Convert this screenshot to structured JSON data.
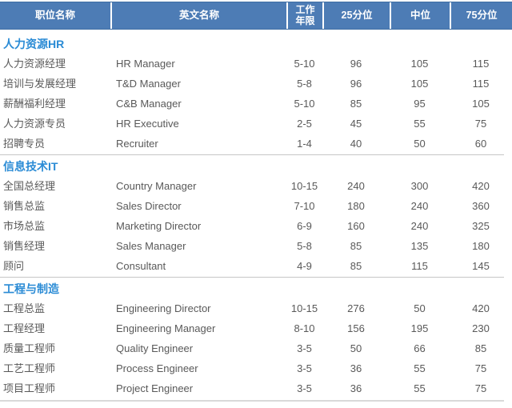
{
  "colors": {
    "header_bg": "#4d7cb5",
    "header_border": "#3e6da3",
    "header_text": "#ffffff",
    "section_title_text": "#2a8bd5",
    "body_text": "#595959",
    "divider": "#c6c6c6",
    "bottom_divider": "#d9d9d9"
  },
  "table": {
    "headers": [
      "职位名称",
      "英文名称",
      "工作年限",
      "25分位",
      "中位",
      "75分位"
    ],
    "sections": [
      {
        "title": "人力资源HR",
        "rows": [
          [
            "人力资源经理",
            "HR Manager",
            "5-10",
            "96",
            "105",
            "115"
          ],
          [
            "培训与发展经理",
            "T&D Manager",
            "5-8",
            "96",
            "105",
            "115"
          ],
          [
            "薪酬福利经理",
            "C&B Manager",
            "5-10",
            "85",
            "95",
            "105"
          ],
          [
            "人力资源专员",
            "HR Executive",
            "2-5",
            "45",
            "55",
            "75"
          ],
          [
            "招聘专员",
            "Recruiter",
            "1-4",
            "40",
            "50",
            "60"
          ]
        ]
      },
      {
        "title": "信息技术IT",
        "rows": [
          [
            "全国总经理",
            "Country Manager",
            "10-15",
            "240",
            "300",
            "420"
          ],
          [
            "销售总监",
            "Sales Director",
            "7-10",
            "180",
            "240",
            "360"
          ],
          [
            "市场总监",
            "Marketing Director",
            "6-9",
            "160",
            "240",
            "325"
          ],
          [
            "销售经理",
            "Sales Manager",
            "5-8",
            "85",
            "135",
            "180"
          ],
          [
            "顾问",
            "Consultant",
            "4-9",
            "85",
            "115",
            "145"
          ]
        ]
      },
      {
        "title": "工程与制造",
        "rows": [
          [
            "工程总监",
            "Engineering Director",
            "10-15",
            "276",
            "50",
            "420"
          ],
          [
            "工程经理",
            "Engineering Manager",
            "8-10",
            "156",
            "195",
            "230"
          ],
          [
            "质量工程师",
            "Quality Engineer",
            "3-5",
            "50",
            "66",
            "85"
          ],
          [
            "工艺工程师",
            "Process Engineer",
            "3-5",
            "36",
            "55",
            "75"
          ],
          [
            "项目工程师",
            "Project Engineer",
            "3-5",
            "36",
            "55",
            "75"
          ]
        ]
      }
    ]
  }
}
